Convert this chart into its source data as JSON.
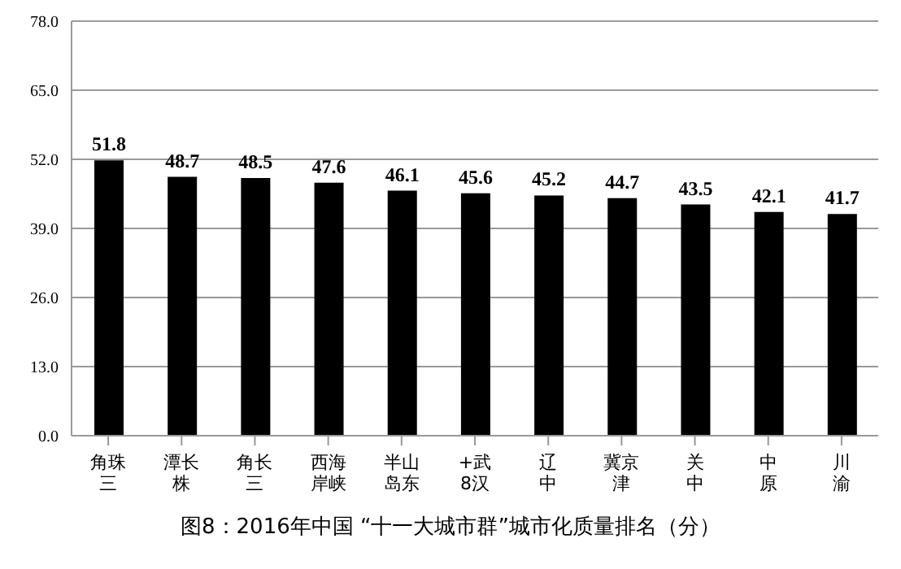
{
  "chart_data": {
    "type": "bar",
    "title": "图8：2016年中国 “十一大城市群”城市化质量排名（分）",
    "categories": [
      "角珠三",
      "潭长株",
      "角长三",
      "西海岸峡",
      "半山岛东",
      "+武8汉",
      "辽中",
      "冀京津",
      "关中",
      "中原",
      "川渝"
    ],
    "values": [
      51.8,
      48.7,
      48.5,
      47.6,
      46.1,
      45.6,
      45.2,
      44.7,
      43.5,
      42.1,
      41.7
    ],
    "color": "#000000",
    "ylim": [
      0,
      78
    ],
    "yticks": [
      {
        "value": 0,
        "label": "0.0"
      },
      {
        "value": 13,
        "label": "13.0"
      },
      {
        "value": 26,
        "label": "26.0"
      },
      {
        "value": 39,
        "label": "39.0"
      },
      {
        "value": 52,
        "label": "52.0"
      },
      {
        "value": 65,
        "label": "65.0"
      },
      {
        "value": 78,
        "label": "78.0"
      }
    ],
    "grid": "y",
    "data_labels": true
  }
}
